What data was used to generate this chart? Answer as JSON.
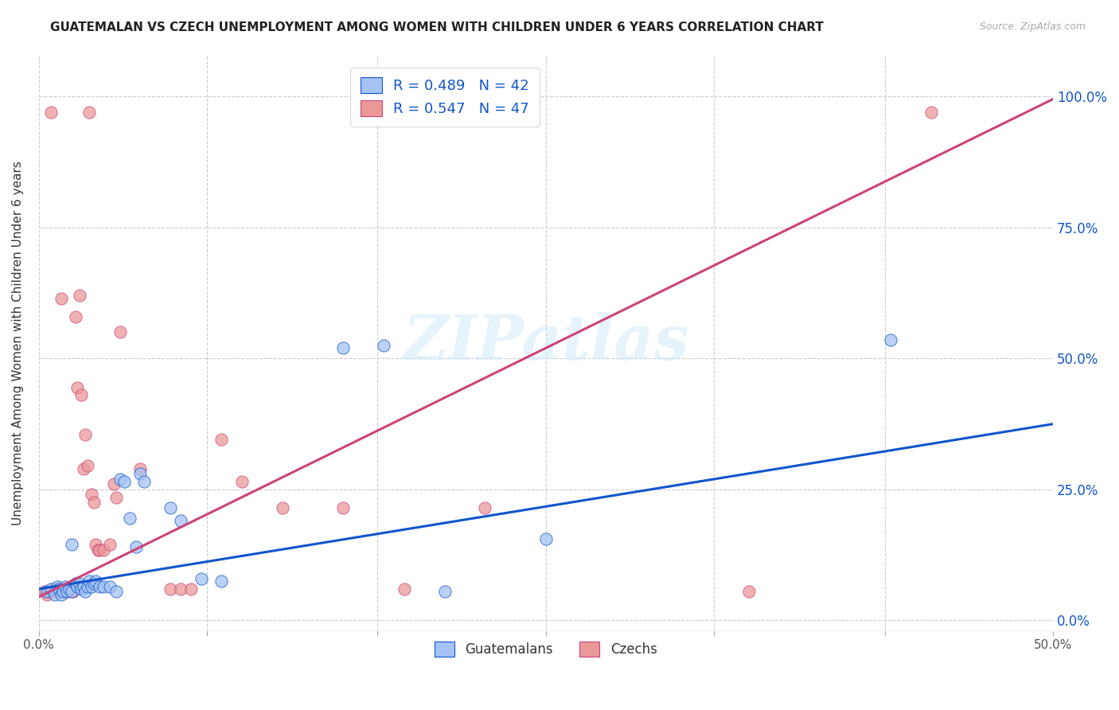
{
  "title": "GUATEMALAN VS CZECH UNEMPLOYMENT AMONG WOMEN WITH CHILDREN UNDER 6 YEARS CORRELATION CHART",
  "source": "Source: ZipAtlas.com",
  "ylabel": "Unemployment Among Women with Children Under 6 years",
  "xlim": [
    0.0,
    0.5
  ],
  "ylim": [
    -0.02,
    1.08
  ],
  "yticks": [
    0.0,
    0.25,
    0.5,
    0.75,
    1.0
  ],
  "ytick_labels": [
    "0.0%",
    "25.0%",
    "50.0%",
    "75.0%",
    "100.0%"
  ],
  "xticks": [
    0.0,
    0.083,
    0.167,
    0.25,
    0.333,
    0.417,
    0.5
  ],
  "blue_color": "#a4c2f4",
  "pink_color": "#ea9999",
  "blue_line_color": "#1155cc",
  "pink_line_color": "#cc4477",
  "blue_scatter": [
    [
      0.004,
      0.055
    ],
    [
      0.006,
      0.06
    ],
    [
      0.008,
      0.05
    ],
    [
      0.009,
      0.065
    ],
    [
      0.01,
      0.06
    ],
    [
      0.011,
      0.05
    ],
    [
      0.012,
      0.055
    ],
    [
      0.013,
      0.065
    ],
    [
      0.014,
      0.055
    ],
    [
      0.015,
      0.06
    ],
    [
      0.016,
      0.055
    ],
    [
      0.016,
      0.145
    ],
    [
      0.018,
      0.07
    ],
    [
      0.019,
      0.065
    ],
    [
      0.02,
      0.07
    ],
    [
      0.021,
      0.06
    ],
    [
      0.022,
      0.065
    ],
    [
      0.023,
      0.055
    ],
    [
      0.024,
      0.065
    ],
    [
      0.025,
      0.075
    ],
    [
      0.026,
      0.065
    ],
    [
      0.027,
      0.07
    ],
    [
      0.028,
      0.075
    ],
    [
      0.03,
      0.065
    ],
    [
      0.032,
      0.065
    ],
    [
      0.035,
      0.065
    ],
    [
      0.038,
      0.055
    ],
    [
      0.04,
      0.27
    ],
    [
      0.042,
      0.265
    ],
    [
      0.045,
      0.195
    ],
    [
      0.048,
      0.14
    ],
    [
      0.05,
      0.28
    ],
    [
      0.052,
      0.265
    ],
    [
      0.065,
      0.215
    ],
    [
      0.07,
      0.19
    ],
    [
      0.08,
      0.08
    ],
    [
      0.09,
      0.075
    ],
    [
      0.15,
      0.52
    ],
    [
      0.17,
      0.525
    ],
    [
      0.2,
      0.055
    ],
    [
      0.25,
      0.155
    ],
    [
      0.42,
      0.535
    ]
  ],
  "pink_scatter": [
    [
      0.003,
      0.055
    ],
    [
      0.004,
      0.05
    ],
    [
      0.005,
      0.055
    ],
    [
      0.006,
      0.97
    ],
    [
      0.007,
      0.06
    ],
    [
      0.008,
      0.055
    ],
    [
      0.009,
      0.06
    ],
    [
      0.01,
      0.055
    ],
    [
      0.011,
      0.615
    ],
    [
      0.012,
      0.06
    ],
    [
      0.013,
      0.055
    ],
    [
      0.014,
      0.055
    ],
    [
      0.015,
      0.06
    ],
    [
      0.016,
      0.055
    ],
    [
      0.017,
      0.055
    ],
    [
      0.018,
      0.58
    ],
    [
      0.019,
      0.445
    ],
    [
      0.02,
      0.62
    ],
    [
      0.021,
      0.43
    ],
    [
      0.022,
      0.29
    ],
    [
      0.023,
      0.355
    ],
    [
      0.024,
      0.295
    ],
    [
      0.025,
      0.97
    ],
    [
      0.026,
      0.24
    ],
    [
      0.027,
      0.225
    ],
    [
      0.028,
      0.145
    ],
    [
      0.029,
      0.135
    ],
    [
      0.03,
      0.135
    ],
    [
      0.032,
      0.135
    ],
    [
      0.035,
      0.145
    ],
    [
      0.037,
      0.26
    ],
    [
      0.038,
      0.235
    ],
    [
      0.04,
      0.55
    ],
    [
      0.05,
      0.29
    ],
    [
      0.065,
      0.06
    ],
    [
      0.07,
      0.06
    ],
    [
      0.075,
      0.06
    ],
    [
      0.09,
      0.345
    ],
    [
      0.1,
      0.265
    ],
    [
      0.12,
      0.215
    ],
    [
      0.15,
      0.215
    ],
    [
      0.18,
      0.06
    ],
    [
      0.22,
      0.215
    ],
    [
      0.35,
      0.055
    ],
    [
      0.44,
      0.97
    ]
  ],
  "blue_line": [
    [
      0.0,
      0.06
    ],
    [
      0.5,
      0.375
    ]
  ],
  "pink_line": [
    [
      0.0,
      0.045
    ],
    [
      0.5,
      0.995
    ]
  ],
  "watermark": "ZIPatlas",
  "background_color": "#ffffff",
  "grid_color": "#cccccc"
}
